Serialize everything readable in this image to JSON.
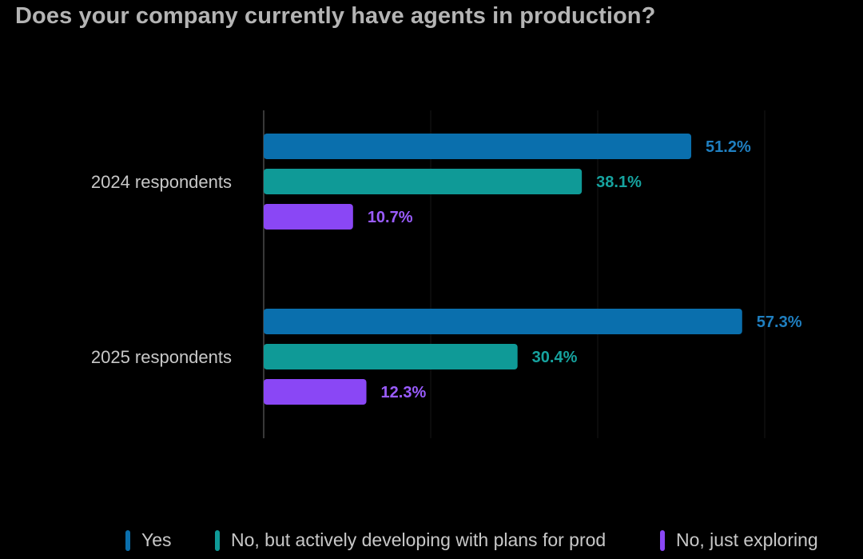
{
  "title": "Does your company currently have agents in production?",
  "colors": {
    "background": "#000000",
    "yes": "#0a6fad",
    "developing": "#0f9a97",
    "exploring": "#8a47f5",
    "label_yes": "#1f7fc0",
    "label_developing": "#16a39f",
    "label_exploring": "#9a5cff"
  },
  "legend": [
    {
      "label": "Yes",
      "color": "#0a6fad"
    },
    {
      "label": "No, but actively developing with plans for prod",
      "color": "#0f9a97"
    },
    {
      "label": "No, just exploring",
      "color": "#8a47f5"
    }
  ],
  "chart_data": {
    "type": "bar",
    "orientation": "horizontal",
    "title": "Does your company currently have agents in production?",
    "categories": [
      "2024 respondents",
      "2025 respondents"
    ],
    "series": [
      {
        "name": "Yes",
        "values": [
          51.2,
          57.3
        ],
        "labels": [
          "51.2%",
          "57.3%"
        ],
        "color": "#0a6fad",
        "label_color": "#1f7fc0"
      },
      {
        "name": "No, but actively developing with plans for prod",
        "values": [
          38.1,
          30.4
        ],
        "labels": [
          "38.1%",
          "30.4%"
        ],
        "color": "#0f9a97",
        "label_color": "#16a39f"
      },
      {
        "name": "No, just exploring",
        "values": [
          10.7,
          12.3
        ],
        "labels": [
          "10.7%",
          "12.3%"
        ],
        "color": "#8a47f5",
        "label_color": "#9a5cff"
      }
    ],
    "xlim": [
      0,
      60
    ],
    "grid": true,
    "legend_position": "bottom"
  }
}
